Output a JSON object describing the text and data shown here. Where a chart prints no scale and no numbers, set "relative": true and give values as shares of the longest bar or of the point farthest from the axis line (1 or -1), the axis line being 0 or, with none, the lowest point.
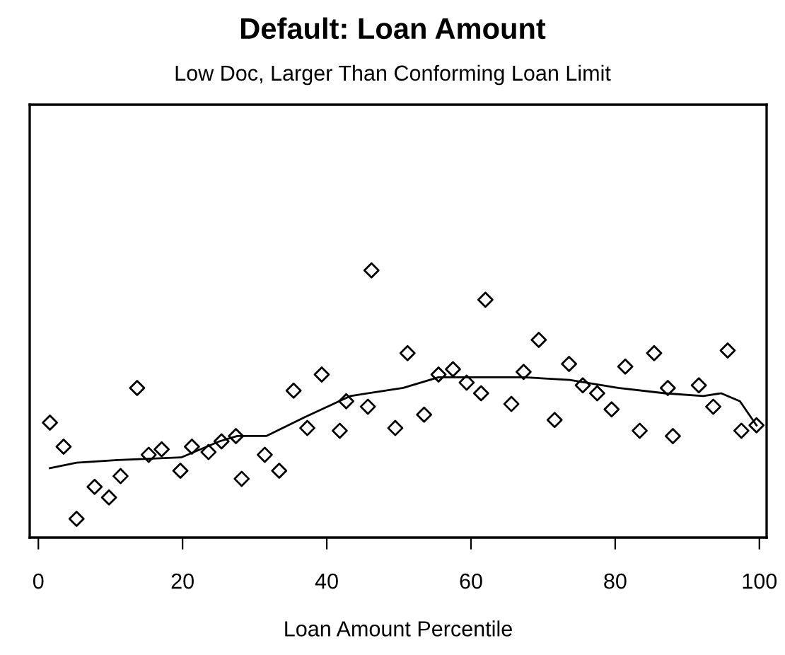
{
  "chart_data": {
    "type": "scatter",
    "title": "Default: Loan Amount",
    "subtitle": "Low Doc, Larger Than Conforming Loan Limit",
    "xlabel": "Loan Amount Percentile",
    "relative": true,
    "xlim": [
      -1.2,
      101
    ],
    "xticks": [
      0,
      20,
      40,
      60,
      80,
      100
    ],
    "tick_labels": "x",
    "grid": false,
    "legend": false,
    "marker": "diamond",
    "series": [
      {
        "color": "#000000",
        "x": [
          1.6,
          3.5,
          5.3,
          7.8,
          9.8,
          11.4,
          13.7,
          15.3,
          17.1,
          19.7,
          21.3,
          23.6,
          25.4,
          27.4,
          28.2,
          31.4,
          33.4,
          35.4,
          37.3,
          39.3,
          41.8,
          42.7,
          45.7,
          46.2,
          49.5,
          51.2,
          53.5,
          55.5,
          57.5,
          59.4,
          61.4,
          62.0,
          65.6,
          67.3,
          69.4,
          71.6,
          73.6,
          75.5,
          77.5,
          79.5,
          81.4,
          83.4,
          85.4,
          87.3,
          88.0,
          91.6,
          93.6,
          95.6,
          97.5,
          99.6
        ],
        "values": [
          0.43,
          0.34,
          0.07,
          0.19,
          0.15,
          0.23,
          0.56,
          0.31,
          0.33,
          0.25,
          0.34,
          0.32,
          0.36,
          0.38,
          0.22,
          0.31,
          0.25,
          0.55,
          0.41,
          0.61,
          0.4,
          0.51,
          0.49,
          1.0,
          0.41,
          0.69,
          0.46,
          0.61,
          0.63,
          0.58,
          0.54,
          0.89,
          0.5,
          0.62,
          0.74,
          0.44,
          0.65,
          0.57,
          0.54,
          0.48,
          0.64,
          0.4,
          0.69,
          0.56,
          0.38,
          0.57,
          0.49,
          0.7,
          0.4,
          0.42
        ]
      },
      {
        "type": "line",
        "color": "#000000",
        "marker": "none",
        "line_style": "solid",
        "x": [
          1.6,
          5.3,
          11.0,
          19.8,
          25.1,
          27.6,
          31.6,
          36.9,
          43.3,
          50.6,
          55.5,
          60.8,
          67.3,
          73.7,
          80.4,
          86.9,
          92.2,
          94.7,
          97.3,
          99.6
        ],
        "values": [
          0.26,
          0.28,
          0.29,
          0.3,
          0.36,
          0.38,
          0.38,
          0.45,
          0.53,
          0.56,
          0.6,
          0.6,
          0.6,
          0.59,
          0.56,
          0.54,
          0.53,
          0.54,
          0.51,
          0.42
        ]
      }
    ]
  }
}
